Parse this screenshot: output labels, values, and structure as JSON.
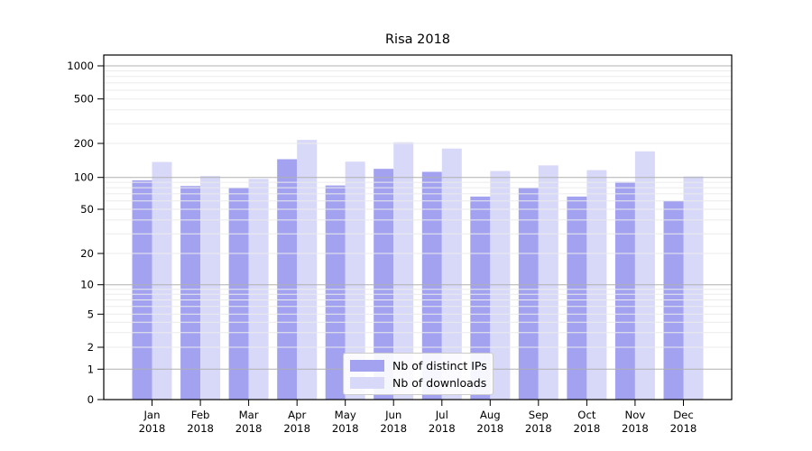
{
  "title": "Risa 2018",
  "chart_data": {
    "type": "bar",
    "title": "Risa 2018",
    "categories": [
      "Jan 2018",
      "Feb 2018",
      "Mar 2018",
      "Apr 2018",
      "May 2018",
      "Jun 2018",
      "Jul 2018",
      "Aug 2018",
      "Sep 2018",
      "Oct 2018",
      "Nov 2018",
      "Dec 2018"
    ],
    "x_tick_month": [
      "Jan",
      "Feb",
      "Mar",
      "Apr",
      "May",
      "Jun",
      "Jul",
      "Aug",
      "Sep",
      "Oct",
      "Nov",
      "Dec"
    ],
    "x_tick_year": "2018",
    "series": [
      {
        "name": "Nb of distinct IPs",
        "color": "#a2a2f0",
        "values": [
          94,
          83,
          80,
          145,
          84,
          119,
          112,
          66,
          80,
          66,
          91,
          60
        ]
      },
      {
        "name": "Nb of downloads",
        "color": "#d8d8f8",
        "values": [
          137,
          103,
          97,
          215,
          138,
          205,
          180,
          114,
          128,
          116,
          170,
          102
        ]
      }
    ],
    "yscale": "symlog",
    "ylabel": "",
    "xlabel": "",
    "y_ticks": [
      0,
      1,
      2,
      5,
      10,
      20,
      50,
      100,
      200,
      500,
      1000
    ],
    "ylim": [
      0,
      1300
    ],
    "grid": true,
    "legend_position": "lower center",
    "colors": {
      "major_grid": "#b0b0b0",
      "minor_grid": "#ebebeb",
      "axis": "#000000",
      "background": "#ffffff"
    }
  }
}
